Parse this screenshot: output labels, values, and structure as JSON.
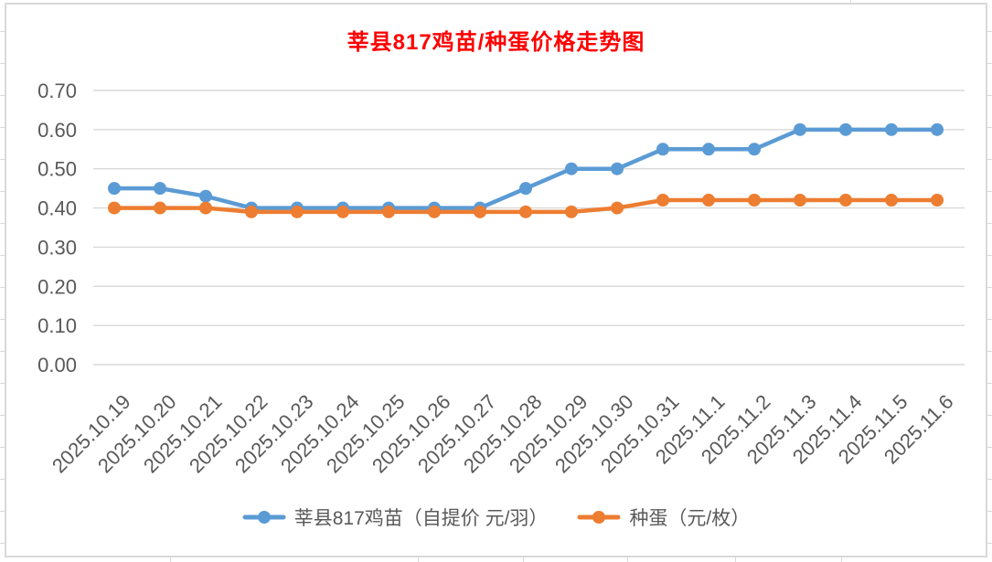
{
  "chart": {
    "title": "莘县817鸡苗/种蛋价格走势图",
    "title_color": "#FF0000",
    "axis_text_color": "#595959",
    "gridline_color": "#D9D9D9",
    "frame_border_color": "#D9D9D9"
  },
  "chart_data": {
    "type": "line",
    "title": "莘县817鸡苗/种蛋价格走势图",
    "categories": [
      "2025.10.19",
      "2025.10.20",
      "2025.10.21",
      "2025.10.22",
      "2025.10.23",
      "2025.10.24",
      "2025.10.25",
      "2025.10.26",
      "2025.10.27",
      "2025.10.28",
      "2025.10.29",
      "2025.10.30",
      "2025.10.31",
      "2025.11.1",
      "2025.11.2",
      "2025.11.3",
      "2025.11.4",
      "2025.11.5",
      "2025.11.6"
    ],
    "series": [
      {
        "name": "莘县817鸡苗（自提价 元/羽）",
        "color": "#5B9BD5",
        "values": [
          0.45,
          0.45,
          0.43,
          0.4,
          0.4,
          0.4,
          0.4,
          0.4,
          0.4,
          0.45,
          0.5,
          0.5,
          0.55,
          0.55,
          0.55,
          0.6,
          0.6,
          0.6,
          0.6
        ]
      },
      {
        "name": "种蛋（元/枚）",
        "color": "#ED7D31",
        "values": [
          0.4,
          0.4,
          0.4,
          0.39,
          0.39,
          0.39,
          0.39,
          0.39,
          0.39,
          0.39,
          0.39,
          0.4,
          0.42,
          0.42,
          0.42,
          0.42,
          0.42,
          0.42,
          0.42
        ]
      }
    ],
    "ylim": [
      0.0,
      0.7
    ],
    "ytick_step": 0.1,
    "ytick_labels": [
      "0.00",
      "0.10",
      "0.20",
      "0.30",
      "0.40",
      "0.50",
      "0.60",
      "0.70"
    ],
    "xlabel": "",
    "ylabel": "",
    "grid": true,
    "legend_position": "bottom",
    "marker": "circle"
  }
}
